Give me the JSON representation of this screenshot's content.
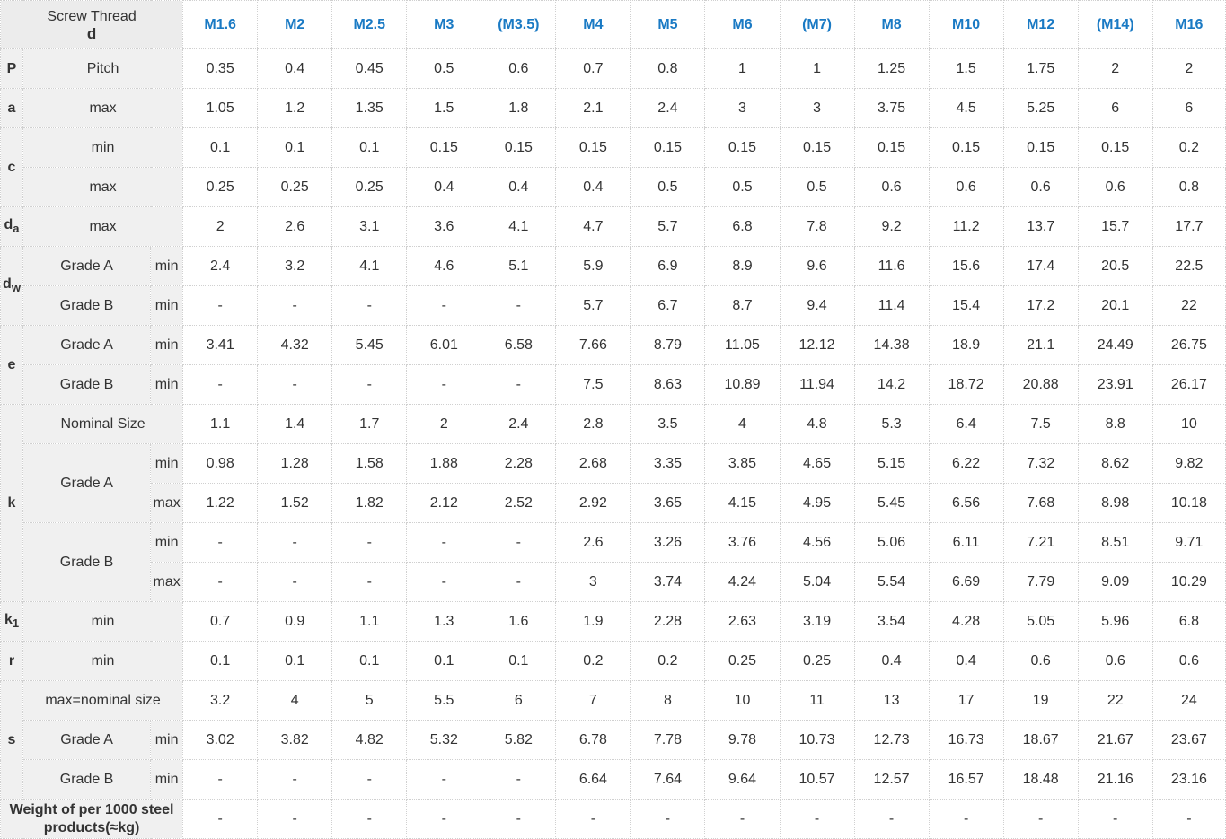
{
  "header": {
    "line1": "Screw Thread",
    "line2": "d",
    "sizes": [
      "M1.6",
      "M2",
      "M2.5",
      "M3",
      "(M3.5)",
      "M4",
      "M5",
      "M6",
      "(M7)",
      "M8",
      "M10",
      "M12",
      "(M14)",
      "M16"
    ]
  },
  "rows": [
    {
      "sym": "P",
      "desc": "Pitch",
      "values": [
        "0.35",
        "0.4",
        "0.45",
        "0.5",
        "0.6",
        "0.7",
        "0.8",
        "1",
        "1",
        "1.25",
        "1.5",
        "1.75",
        "2",
        "2"
      ]
    },
    {
      "sym": "a",
      "desc": "max",
      "values": [
        "1.05",
        "1.2",
        "1.35",
        "1.5",
        "1.8",
        "2.1",
        "2.4",
        "3",
        "3",
        "3.75",
        "4.5",
        "5.25",
        "6",
        "6"
      ]
    },
    {
      "sym": "c",
      "desc": "min",
      "values": [
        "0.1",
        "0.1",
        "0.1",
        "0.15",
        "0.15",
        "0.15",
        "0.15",
        "0.15",
        "0.15",
        "0.15",
        "0.15",
        "0.15",
        "0.15",
        "0.2"
      ]
    },
    {
      "desc": "max",
      "values": [
        "0.25",
        "0.25",
        "0.25",
        "0.4",
        "0.4",
        "0.4",
        "0.5",
        "0.5",
        "0.5",
        "0.6",
        "0.6",
        "0.6",
        "0.6",
        "0.8"
      ]
    },
    {
      "sym": "d",
      "sym_sub": "a",
      "desc": "max",
      "values": [
        "2",
        "2.6",
        "3.1",
        "3.6",
        "4.1",
        "4.7",
        "5.7",
        "6.8",
        "7.8",
        "9.2",
        "11.2",
        "13.7",
        "15.7",
        "17.7"
      ]
    },
    {
      "sym": "d",
      "sym_sub": "w",
      "grade": "Grade A",
      "lim": "min",
      "values": [
        "2.4",
        "3.2",
        "4.1",
        "4.6",
        "5.1",
        "5.9",
        "6.9",
        "8.9",
        "9.6",
        "11.6",
        "15.6",
        "17.4",
        "20.5",
        "22.5"
      ]
    },
    {
      "grade": "Grade B",
      "lim": "min",
      "values": [
        "-",
        "-",
        "-",
        "-",
        "-",
        "5.7",
        "6.7",
        "8.7",
        "9.4",
        "11.4",
        "15.4",
        "17.2",
        "20.1",
        "22"
      ]
    },
    {
      "sym": "e",
      "grade": "Grade A",
      "lim": "min",
      "values": [
        "3.41",
        "4.32",
        "5.45",
        "6.01",
        "6.58",
        "7.66",
        "8.79",
        "11.05",
        "12.12",
        "14.38",
        "18.9",
        "21.1",
        "24.49",
        "26.75"
      ]
    },
    {
      "grade": "Grade B",
      "lim": "min",
      "values": [
        "-",
        "-",
        "-",
        "-",
        "-",
        "7.5",
        "8.63",
        "10.89",
        "11.94",
        "14.2",
        "18.72",
        "20.88",
        "23.91",
        "26.17"
      ]
    },
    {
      "sym": "k",
      "desc": "Nominal Size",
      "values": [
        "1.1",
        "1.4",
        "1.7",
        "2",
        "2.4",
        "2.8",
        "3.5",
        "4",
        "4.8",
        "5.3",
        "6.4",
        "7.5",
        "8.8",
        "10"
      ]
    },
    {
      "grade": "Grade A",
      "lim": "min",
      "values": [
        "0.98",
        "1.28",
        "1.58",
        "1.88",
        "2.28",
        "2.68",
        "3.35",
        "3.85",
        "4.65",
        "5.15",
        "6.22",
        "7.32",
        "8.62",
        "9.82"
      ]
    },
    {
      "lim": "max",
      "values": [
        "1.22",
        "1.52",
        "1.82",
        "2.12",
        "2.52",
        "2.92",
        "3.65",
        "4.15",
        "4.95",
        "5.45",
        "6.56",
        "7.68",
        "8.98",
        "10.18"
      ]
    },
    {
      "grade": "Grade B",
      "lim": "min",
      "values": [
        "-",
        "-",
        "-",
        "-",
        "-",
        "2.6",
        "3.26",
        "3.76",
        "4.56",
        "5.06",
        "6.11",
        "7.21",
        "8.51",
        "9.71"
      ]
    },
    {
      "lim": "max",
      "values": [
        "-",
        "-",
        "-",
        "-",
        "-",
        "3",
        "3.74",
        "4.24",
        "5.04",
        "5.54",
        "6.69",
        "7.79",
        "9.09",
        "10.29"
      ]
    },
    {
      "sym": "k",
      "sym_sub": "1",
      "desc": "min",
      "values": [
        "0.7",
        "0.9",
        "1.1",
        "1.3",
        "1.6",
        "1.9",
        "2.28",
        "2.63",
        "3.19",
        "3.54",
        "4.28",
        "5.05",
        "5.96",
        "6.8"
      ]
    },
    {
      "sym": "r",
      "desc": "min",
      "values": [
        "0.1",
        "0.1",
        "0.1",
        "0.1",
        "0.1",
        "0.2",
        "0.2",
        "0.25",
        "0.25",
        "0.4",
        "0.4",
        "0.6",
        "0.6",
        "0.6"
      ]
    },
    {
      "sym": "s",
      "desc": "max=nominal size",
      "values": [
        "3.2",
        "4",
        "5",
        "5.5",
        "6",
        "7",
        "8",
        "10",
        "11",
        "13",
        "17",
        "19",
        "22",
        "24"
      ]
    },
    {
      "grade": "Grade A",
      "lim": "min",
      "values": [
        "3.02",
        "3.82",
        "4.82",
        "5.32",
        "5.82",
        "6.78",
        "7.78",
        "9.78",
        "10.73",
        "12.73",
        "16.73",
        "18.67",
        "21.67",
        "23.67"
      ]
    },
    {
      "grade": "Grade B",
      "lim": "min",
      "values": [
        "-",
        "-",
        "-",
        "-",
        "-",
        "6.64",
        "7.64",
        "9.64",
        "10.57",
        "12.57",
        "16.57",
        "18.48",
        "21.16",
        "23.16"
      ]
    }
  ],
  "weight": {
    "label": "Weight of per 1000 steel products(≈kg)",
    "values": [
      "-",
      "-",
      "-",
      "-",
      "-",
      "-",
      "-",
      "-",
      "-",
      "-",
      "-",
      "-",
      "-",
      "-"
    ]
  },
  "colors": {
    "header_text": "#1a7ac4",
    "label_bg": "#f0f0f0",
    "corner_bg": "#ececec",
    "weight_value": "#cc0000"
  }
}
